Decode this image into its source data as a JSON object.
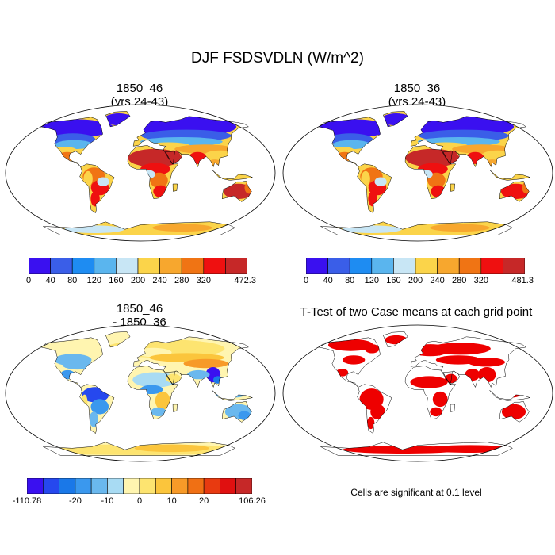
{
  "figure_title": "DJF FSDSVDLN (W/m^2)",
  "panels": {
    "a": {
      "title_line1": "1850_46",
      "title_line2": "(yrs 24-43)"
    },
    "b": {
      "title_line1": "1850_36",
      "title_line2": "(yrs 24-43)"
    },
    "c": {
      "title_line1": "1850_46",
      "title_line2": "- 1850_36"
    },
    "d": {
      "title": "T-Test of two Case means at each grid point",
      "note": "Cells are significant at 0.1 level"
    }
  },
  "chart_data": [
    {
      "type": "heatmap",
      "panel": "a",
      "title": "1850_46 (yrs 24-43)",
      "variable": "FSDSVDLN",
      "units": "W/m^2",
      "colorbar": {
        "levels": [
          "0",
          "40",
          "80",
          "120",
          "160",
          "200",
          "240",
          "280",
          "320",
          "472.3"
        ],
        "colors": [
          "#3a10f0",
          "#3a5ee8",
          "#1e8cf2",
          "#5ab5ee",
          "#c8e6f5",
          "#fbd44a",
          "#f7a72e",
          "#f07414",
          "#ef1010",
          "#c62828"
        ]
      }
    },
    {
      "type": "heatmap",
      "panel": "b",
      "title": "1850_36 (yrs 24-43)",
      "variable": "FSDSVDLN",
      "units": "W/m^2",
      "colorbar": {
        "levels": [
          "0",
          "40",
          "80",
          "120",
          "160",
          "200",
          "240",
          "280",
          "320",
          "481.3"
        ],
        "colors": [
          "#3a10f0",
          "#3a5ee8",
          "#1e8cf2",
          "#5ab5ee",
          "#c8e6f5",
          "#fbd44a",
          "#f7a72e",
          "#f07414",
          "#ef1010",
          "#c62828"
        ]
      }
    },
    {
      "type": "heatmap",
      "panel": "c",
      "title": "1850_46 - 1850_36",
      "units": "W/m^2",
      "colorbar": {
        "labels": [
          "-110.78",
          "-20",
          "-10",
          "0",
          "10",
          "20",
          "106.26"
        ],
        "label_boundaries": [
          0,
          3,
          5,
          7,
          9,
          11,
          14
        ],
        "colors": [
          "#3a10f0",
          "#2648ee",
          "#1a78e8",
          "#3a98ee",
          "#6ab8ee",
          "#a8dbf3",
          "#fff5b0",
          "#fde470",
          "#fbc53c",
          "#f79a28",
          "#f07014",
          "#e83a10",
          "#e01010",
          "#c62828"
        ]
      }
    },
    {
      "type": "heatmap",
      "panel": "d",
      "title": "T-Test of two Case means at each grid point",
      "significance_level": 0.1,
      "significant_color": "#ee0000"
    }
  ],
  "colors": {
    "land_outline": "#000000",
    "background": "#ffffff"
  }
}
